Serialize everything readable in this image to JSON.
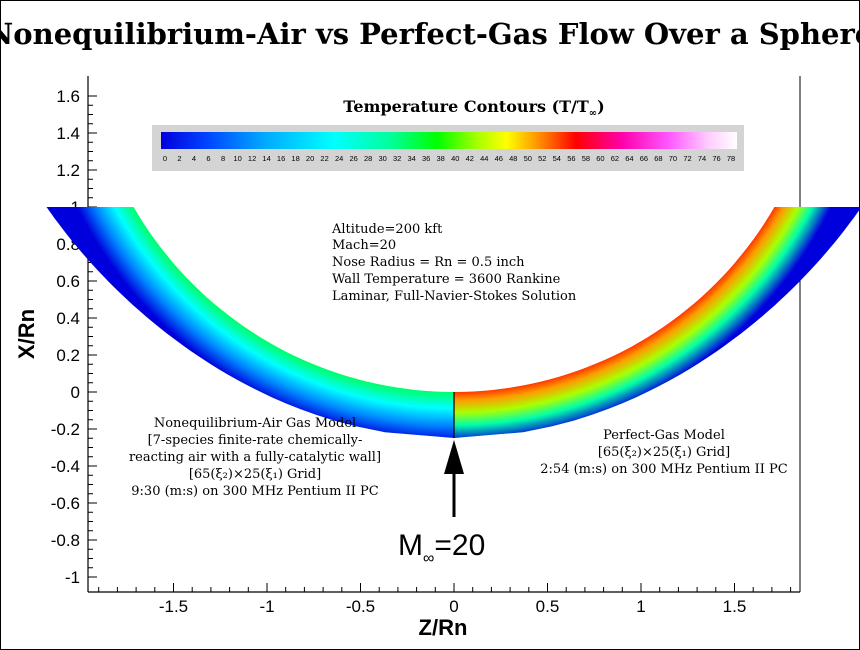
{
  "chart_data": {
    "type": "heatmap",
    "title": "Nonequilibrium-Air vs Perfect-Gas Flow Over a Sphere",
    "xlabel": "Z/Rn",
    "ylabel": "X/Rn",
    "xlim": [
      -1.95,
      1.85
    ],
    "ylim": [
      -1.05,
      1.7
    ],
    "x_ticks": [
      "-1.5",
      "-1",
      "-0.5",
      "0",
      "0.5",
      "1",
      "1.5"
    ],
    "y_ticks": [
      "1.6",
      "1.4",
      "1.2",
      "1",
      "0.8",
      "0.6",
      "0.4",
      "0.2",
      "0",
      "-0.2",
      "-0.4",
      "-0.6",
      "-0.8",
      "-1"
    ],
    "legend": {
      "title_main": "Temperature Contours (T/T",
      "title_sub": "∞",
      "title_close": ")",
      "levels": [
        "0",
        "2",
        "4",
        "6",
        "8",
        "10",
        "12",
        "14",
        "16",
        "18",
        "20",
        "22",
        "24",
        "26",
        "28",
        "30",
        "32",
        "34",
        "36",
        "38",
        "40",
        "42",
        "44",
        "46",
        "48",
        "50",
        "52",
        "54",
        "56",
        "58",
        "60",
        "62",
        "64",
        "66",
        "68",
        "70",
        "72",
        "74",
        "76",
        "78"
      ],
      "colors": [
        "#0000dd",
        "#0044ff",
        "#00aaff",
        "#00ffff",
        "#00ff99",
        "#00ff00",
        "#aaff00",
        "#ffff00",
        "#ff8800",
        "#ff0000",
        "#ff00aa",
        "#ff55ff",
        "#ffccff",
        "#ffffff"
      ]
    },
    "conditions": [
      "Altitude=200 kft",
      "Mach=20",
      "Nose Radius = Rn = 0.5 inch",
      "Wall Temperature = 3600 Rankine",
      "Laminar, Full-Navier-Stokes Solution"
    ],
    "left_model": [
      "Nonequilibrium-Air Gas Model",
      "[7-species finite-rate chemically-",
      "reacting air with a fully-catalytic wall]",
      "[65(ξ₂)×25(ξ₁) Grid]",
      "9:30 (m:s) on 300 MHz Pentium II PC"
    ],
    "right_model": [
      "Perfect-Gas Model",
      "[65(ξ₂)×25(ξ₁) Grid]",
      "2:54 (m:s) on 300 MHz Pentium II PC"
    ],
    "freestream": {
      "label": "M",
      "sub": "∞",
      "value": "=20"
    }
  }
}
